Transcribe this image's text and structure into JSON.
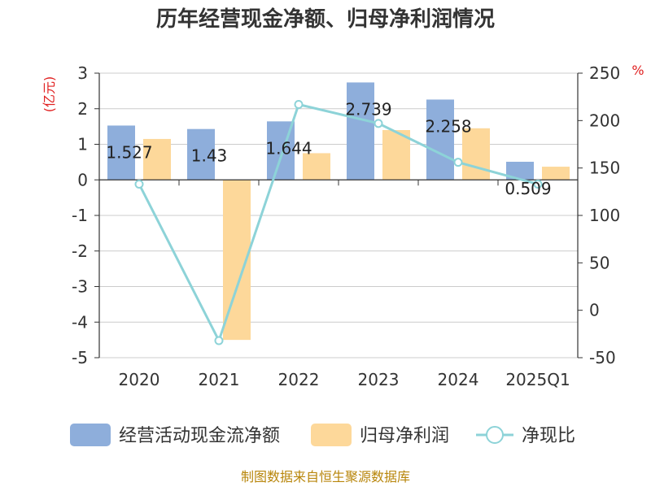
{
  "chart_data": {
    "type": "bar",
    "title": "历年经营现金净额、归母净利润情况",
    "categories": [
      "2020",
      "2021",
      "2022",
      "2023",
      "2024",
      "2025Q1"
    ],
    "y_left": {
      "unit": "(亿元)",
      "ylim": [
        -5,
        3
      ],
      "ticks": [
        3,
        2,
        1,
        0,
        -1,
        -2,
        -3,
        -4,
        -5
      ]
    },
    "y_right": {
      "unit": "%",
      "ylim": [
        -50,
        250
      ],
      "ticks": [
        250,
        200,
        150,
        100,
        50,
        0,
        -50
      ]
    },
    "series": [
      {
        "name": "经营活动现金流净额",
        "kind": "bar",
        "axis": "left",
        "color": "#8eaedb",
        "values": [
          1.527,
          1.43,
          1.644,
          2.739,
          2.258,
          0.509
        ]
      },
      {
        "name": "归母净利润",
        "kind": "bar",
        "axis": "left",
        "color": "#fdd89a",
        "values": [
          1.15,
          -4.5,
          0.75,
          1.4,
          1.45,
          0.37
        ]
      },
      {
        "name": "净现比",
        "kind": "line",
        "axis": "right",
        "color": "#8dd3d8",
        "values": [
          133,
          -32,
          217,
          197,
          156,
          133
        ]
      }
    ],
    "data_labels": [
      "1.527",
      "1.43",
      "1.644",
      "2.739",
      "2.258",
      "0.509"
    ],
    "grid": true,
    "legend_position": "bottom"
  },
  "footer": {
    "source": "制图数据来自恒生聚源数据库"
  }
}
